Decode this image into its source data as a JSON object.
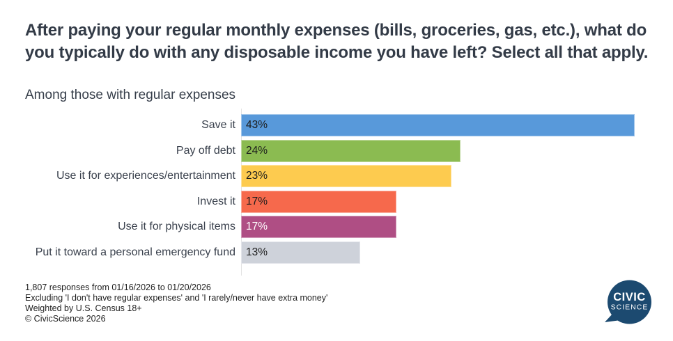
{
  "header": {
    "title": "After paying your regular monthly expenses (bills, groceries, gas, etc.), what do you typically do with any disposable income you have left? Select all that apply.",
    "subtitle": "Among those with regular expenses"
  },
  "chart_data": {
    "type": "bar",
    "orientation": "horizontal",
    "title": "After paying your regular monthly expenses (bills, groceries, gas, etc.), what do you typically do with any disposable income you have left? Select all that apply.",
    "subtitle": "Among those with regular expenses",
    "categories": [
      "Save it",
      "Pay off debt",
      "Use it for experiences/entertainment",
      "Invest it",
      "Use it for physical items",
      "Put it toward a personal emergency fund"
    ],
    "values": [
      43,
      24,
      23,
      17,
      17,
      13
    ],
    "value_labels": [
      "43%",
      "24%",
      "23%",
      "17%",
      "17%",
      "13%"
    ],
    "bar_colors": [
      "#5899DA",
      "#8BBB51",
      "#FDCB4F",
      "#F6694C",
      "#AF4E84",
      "#CED2DA"
    ],
    "value_label_colors": [
      "#1C1C1C",
      "#1C1C1C",
      "#1C1C1C",
      "#1C1C1C",
      "#FFFFFF",
      "#1C1C1C"
    ],
    "xlabel": "",
    "ylabel": "",
    "xlim": [
      0,
      43
    ],
    "grid": false,
    "legend": false,
    "data_labels_inside_bars": true
  },
  "footer": {
    "lines": [
      "1,807 responses from 01/16/2026 to 01/20/2026",
      "Excluding 'I don't have regular expenses' and 'I rarely/never have extra money'",
      "Weighted by U.S. Census 18+",
      "© CivicScience 2026"
    ]
  },
  "logo": {
    "line1": "CIVIC",
    "line2": "SCIENCE",
    "bubble_color": "#1C4A70",
    "text_color": "#FFFFFF"
  }
}
